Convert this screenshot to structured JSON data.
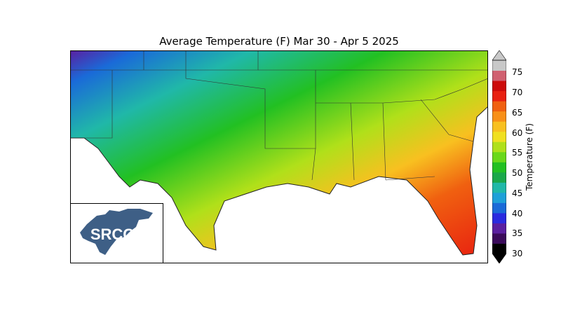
{
  "title": "Average Temperature (F) Mar 30 - Apr 5 2025",
  "colorbar": {
    "label": "Temperature (F)",
    "ticks": [
      "30",
      "35",
      "40",
      "45",
      "50",
      "55",
      "60",
      "65",
      "70",
      "75"
    ],
    "min": 30,
    "max": 78,
    "colors": [
      "#000000",
      "#3a0a5a",
      "#5a1fa0",
      "#2a2adf",
      "#1a6ad8",
      "#1ea0d8",
      "#20b8a8",
      "#1aa84a",
      "#22c022",
      "#6ad81a",
      "#b0e01a",
      "#f0e020",
      "#f8c020",
      "#f89018",
      "#f06010",
      "#e82010",
      "#cc0a0a",
      "#d06070",
      "#c8c8c8"
    ]
  },
  "logo": {
    "text": "SRCC"
  }
}
